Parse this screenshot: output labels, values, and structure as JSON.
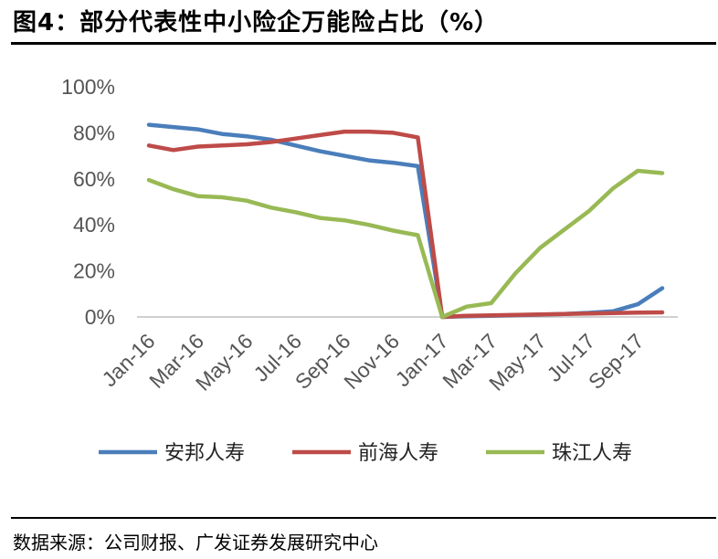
{
  "title": "图4：部分代表性中小险企万能险占比（%）",
  "source": "数据来源：公司财报、广发证券发展研究中心",
  "chart_data": {
    "type": "line",
    "x": [
      "Jan-16",
      "Feb-16",
      "Mar-16",
      "Apr-16",
      "May-16",
      "Jun-16",
      "Jul-16",
      "Aug-16",
      "Sep-16",
      "Oct-16",
      "Nov-16",
      "Dec-16",
      "Jan-17",
      "Feb-17",
      "Mar-17",
      "Apr-17",
      "May-17",
      "Jun-17",
      "Jul-17",
      "Aug-17",
      "Sep-17",
      "Oct-17"
    ],
    "x_tick_labels": [
      "Jan-16",
      "Mar-16",
      "May-16",
      "Jul-16",
      "Sep-16",
      "Nov-16",
      "Jan-17",
      "Mar-17",
      "May-17",
      "Jul-17",
      "Sep-17"
    ],
    "y_ticks": [
      "0%",
      "20%",
      "40%",
      "60%",
      "80%",
      "100%"
    ],
    "ylim": [
      0,
      100
    ],
    "grid": false,
    "legend_position": "bottom",
    "series": [
      {
        "name": "安邦人寿",
        "color": "#4a7ebb",
        "values": [
          83.5,
          82.5,
          81.5,
          79.5,
          78.5,
          77,
          74.5,
          72,
          70,
          68,
          67,
          65.5,
          0,
          0.3,
          0.5,
          0.8,
          1.0,
          1.3,
          1.8,
          2.5,
          5.5,
          12.5
        ]
      },
      {
        "name": "前海人寿",
        "color": "#be4b48",
        "values": [
          74.5,
          72.5,
          74,
          74.5,
          75,
          76,
          77.5,
          79,
          80.5,
          80.5,
          80,
          78,
          0,
          0.5,
          0.7,
          0.9,
          1.1,
          1.3,
          1.5,
          1.7,
          1.9,
          2.0
        ]
      },
      {
        "name": "珠江人寿",
        "color": "#98b954",
        "values": [
          59.5,
          55.5,
          52.5,
          52,
          50.5,
          47.5,
          45.5,
          43,
          42,
          40,
          37.5,
          35.5,
          0,
          4.5,
          6,
          19,
          30,
          38,
          46,
          56,
          63.5,
          62.5
        ]
      }
    ]
  }
}
